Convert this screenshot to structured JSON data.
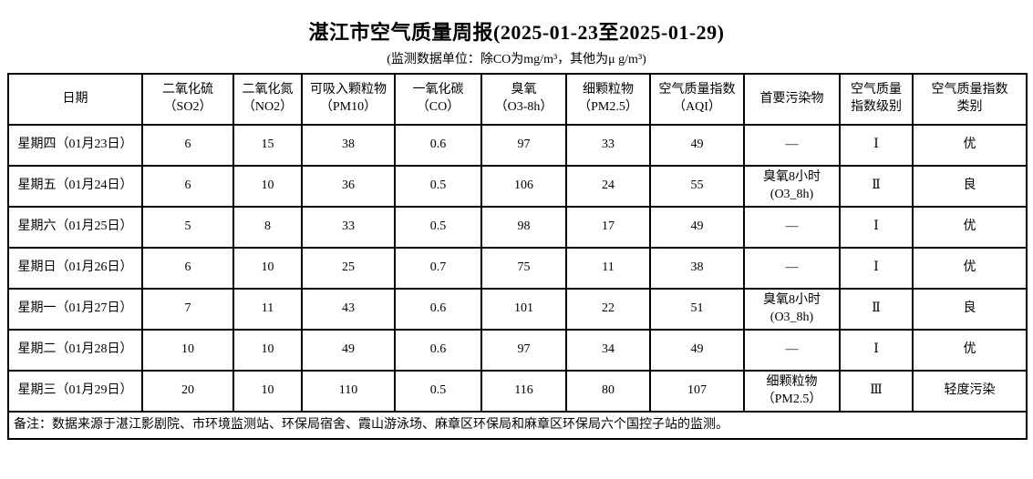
{
  "page": {
    "title": "湛江市空气质量周报(2025-01-23至2025-01-29)",
    "subtitle": "(监测数据单位：除CO为mg/m³，其他为μ g/m³)"
  },
  "table": {
    "headers": [
      "日期",
      "二氧化硫\n（SO2）",
      "二氧化氮\n（NO2）",
      "可吸入颗粒物\n（PM10）",
      "一氧化碳\n（CO）",
      "臭氧\n（O3-8h）",
      "细颗粒物\n（PM2.5）",
      "空气质量指数\n（AQI）",
      "首要污染物",
      "空气质量\n指数级别",
      "空气质量指数\n类别"
    ],
    "rows": [
      [
        "星期四（01月23日）",
        "6",
        "15",
        "38",
        "0.6",
        "97",
        "33",
        "49",
        "—",
        "Ⅰ",
        "优"
      ],
      [
        "星期五（01月24日）",
        "6",
        "10",
        "36",
        "0.5",
        "106",
        "24",
        "55",
        "臭氧8小时\n(O3_8h)",
        "Ⅱ",
        "良"
      ],
      [
        "星期六（01月25日）",
        "5",
        "8",
        "33",
        "0.5",
        "98",
        "17",
        "49",
        "—",
        "Ⅰ",
        "优"
      ],
      [
        "星期日（01月26日）",
        "6",
        "10",
        "25",
        "0.7",
        "75",
        "11",
        "38",
        "—",
        "Ⅰ",
        "优"
      ],
      [
        "星期一（01月27日）",
        "7",
        "11",
        "43",
        "0.6",
        "101",
        "22",
        "51",
        "臭氧8小时\n(O3_8h)",
        "Ⅱ",
        "良"
      ],
      [
        "星期二（01月28日）",
        "10",
        "10",
        "49",
        "0.6",
        "97",
        "34",
        "49",
        "—",
        "Ⅰ",
        "优"
      ],
      [
        "星期三（01月29日）",
        "20",
        "10",
        "110",
        "0.5",
        "116",
        "80",
        "107",
        "细颗粒物\n（PM2.5）",
        "Ⅲ",
        "轻度污染"
      ]
    ],
    "footnote": "备注：数据来源于湛江影剧院、市环境监测站、环保局宿舍、霞山游泳场、麻章区环保局和麻章区环保局六个国控子站的监测。"
  },
  "colors": {
    "text": "#000000",
    "border": "#000000",
    "background": "#ffffff"
  }
}
